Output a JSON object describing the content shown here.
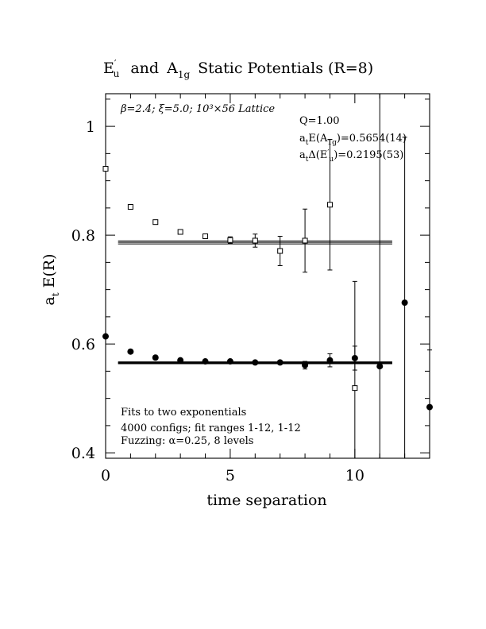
{
  "chart_data": {
    "type": "scatter",
    "title": {
      "p1_base": "E",
      "p1_sup": "′",
      "p1_sub": "u",
      "p2": "and",
      "p3_base": "A",
      "p3_sub": "1g",
      "p4": "Static Potentials (R=8)"
    },
    "xlabel": "time separation",
    "ylabel": {
      "base": "a",
      "sub": "t",
      "rest": "E(R)"
    },
    "xlim": [
      0,
      13
    ],
    "ylim": [
      0.39,
      1.06
    ],
    "xticks": [
      0,
      5,
      10
    ],
    "xtick_labels": [
      "0",
      "5",
      "10"
    ],
    "yticks": [
      0.4,
      0.6,
      0.8,
      1.0
    ],
    "ytick_labels": [
      "0.4",
      "0.6",
      "0.8",
      "1"
    ],
    "xminor": [
      1,
      2,
      3,
      4,
      6,
      7,
      8,
      9,
      11,
      12
    ],
    "yminor": [
      0.45,
      0.5,
      0.55,
      0.65,
      0.7,
      0.75,
      0.85,
      0.9,
      0.95,
      1.05
    ],
    "annotations": {
      "lattice": "β=2.4; ξ=5.0; 10³×56 Lattice",
      "q": "Q=1.00",
      "e_fit": {
        "a": "a",
        "a_sub": "t",
        "mid": "E(A",
        "mid_sub": "1g",
        "rest": ")=0.5654(14)"
      },
      "d_fit": {
        "a": "a",
        "a_sub": "t",
        "mid": "Δ(E",
        "mid_sup": "′",
        "mid_sub": "u",
        "rest": ")=0.2195(53)"
      },
      "fits": "Fits to two exponentials",
      "configs": "4000 configs; fit ranges 1-12, 1-12",
      "fuzzing": "Fuzzing: α=0.25, 8 levels"
    },
    "series": [
      {
        "marker": "open-square",
        "x": [
          0,
          1,
          2,
          3,
          4,
          5,
          6,
          7,
          8,
          9,
          10
        ],
        "y": [
          0.922,
          0.852,
          0.824,
          0.806,
          0.798,
          0.791,
          0.79,
          0.771,
          0.79,
          0.856,
          0.519
        ],
        "err": [
          0.002,
          0.002,
          0.002,
          0.003,
          0.004,
          0.006,
          0.012,
          0.027,
          0.058,
          0.12,
          0.2
        ]
      },
      {
        "marker": "filled-circle",
        "x": [
          0,
          1,
          2,
          3,
          4,
          5,
          6,
          7,
          8,
          9,
          10,
          11,
          12,
          13
        ],
        "y": [
          0.614,
          0.586,
          0.575,
          0.57,
          0.568,
          0.568,
          0.566,
          0.566,
          0.561,
          0.57,
          0.574,
          0.559,
          0.676,
          0.484
        ],
        "err": [
          0.002,
          0.002,
          0.002,
          0.002,
          0.002,
          0.003,
          0.003,
          0.004,
          0.007,
          0.012,
          0.022,
          0.037,
          0.065,
          0.105
        ],
        "err_clip": [
          false,
          false,
          false,
          false,
          false,
          false,
          false,
          false,
          false,
          false,
          false,
          false,
          false,
          false
        ]
      }
    ],
    "wide_error_bars": [
      {
        "x": 10,
        "y": 0.519,
        "lo": 0.39,
        "hi": 0.715
      },
      {
        "x": 11,
        "y": 0.559,
        "lo": 0.39,
        "hi": 1.06
      },
      {
        "x": 12,
        "y": 0.676,
        "lo": 0.39,
        "hi": 0.98
      }
    ],
    "fit_bands": [
      {
        "y": [
          0.784,
          0.7895
        ],
        "center": 0.7868,
        "x_from": 0.5,
        "x_to": 11.5
      },
      {
        "y": [
          0.564,
          0.5668
        ],
        "center": 0.5654,
        "x_from": 0.5,
        "x_to": 11.5
      }
    ]
  }
}
